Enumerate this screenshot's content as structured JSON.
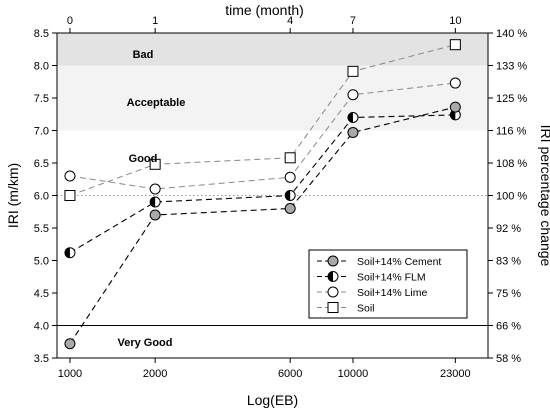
{
  "chart_data": {
    "type": "line",
    "xlabel": "Log(EB)",
    "x2label": "time  (month)",
    "ylabel": "IRI (m/km)",
    "y2label": "IRI percentage change",
    "x_scale": "log",
    "categories": [
      "1000",
      "2000",
      "6000",
      "10000",
      "23000"
    ],
    "x": [
      1000,
      2000,
      6000,
      10000,
      23000
    ],
    "x_ticks": [
      "1000",
      "2000",
      "6000",
      "10000",
      "23000"
    ],
    "x2_ticks": [
      {
        "label": "0",
        "at_x": 1000
      },
      {
        "label": "1",
        "at_x": 2000
      },
      {
        "label": "4",
        "at_x": 6000
      },
      {
        "label": "7",
        "at_x": 10000
      },
      {
        "label": "10",
        "at_x": 23000
      }
    ],
    "ylim": [
      3.5,
      8.5
    ],
    "y_ticks": [
      "3.5",
      "4.0",
      "4.5",
      "5.0",
      "5.5",
      "6.0",
      "6.5",
      "7.0",
      "7.5",
      "8.0",
      "8.5"
    ],
    "y2_ticks": [
      {
        "label": "58 %",
        "at_y": 3.5
      },
      {
        "label": "66 %",
        "at_y": 4.0
      },
      {
        "label": "75 %",
        "at_y": 4.5
      },
      {
        "label": "83 %",
        "at_y": 5.0
      },
      {
        "label": "92 %",
        "at_y": 5.5
      },
      {
        "label": "100 %",
        "at_y": 6.0
      },
      {
        "label": "108 %",
        "at_y": 6.5
      },
      {
        "label": "116 %",
        "at_y": 7.0
      },
      {
        "label": "125 %",
        "at_y": 7.5
      },
      {
        "label": "133 %",
        "at_y": 8.0
      },
      {
        "label": "140 %",
        "at_y": 8.5
      }
    ],
    "regions": [
      {
        "label": "Bad",
        "from": 8.0,
        "to": 8.5,
        "color": "#e3e3e3"
      },
      {
        "label": "Acceptable",
        "from": 7.0,
        "to": 8.0,
        "color": "#f3f3f3"
      },
      {
        "label": "Good",
        "from": 4.0,
        "to": 7.0,
        "color": "#ffffff"
      },
      {
        "label": "Very Good",
        "from": 3.5,
        "to": 4.0,
        "color": "#ffffff"
      }
    ],
    "reference_lines": [
      {
        "y": 6.0,
        "style": "dotted",
        "color": "#999999"
      },
      {
        "y": 4.0,
        "style": "solid",
        "color": "#000000"
      }
    ],
    "series": [
      {
        "name": "Soil+14% Cement",
        "marker": "circle-filled",
        "line": "#000000",
        "values": [
          3.72,
          5.7,
          5.8,
          6.97,
          7.36
        ]
      },
      {
        "name": "Soil+14% FLM",
        "marker": "circle-half",
        "line": "#000000",
        "values": [
          5.12,
          5.9,
          6.0,
          7.2,
          7.24
        ]
      },
      {
        "name": "Soil+14% Lime",
        "marker": "circle-open",
        "line": "#888888",
        "values": [
          6.3,
          6.1,
          6.28,
          7.55,
          7.73
        ]
      },
      {
        "name": "Soil",
        "marker": "square-open",
        "line": "#888888",
        "values": [
          6.0,
          6.48,
          6.58,
          7.91,
          8.32
        ]
      }
    ],
    "legend_position": "bottom-right",
    "grid": false
  }
}
